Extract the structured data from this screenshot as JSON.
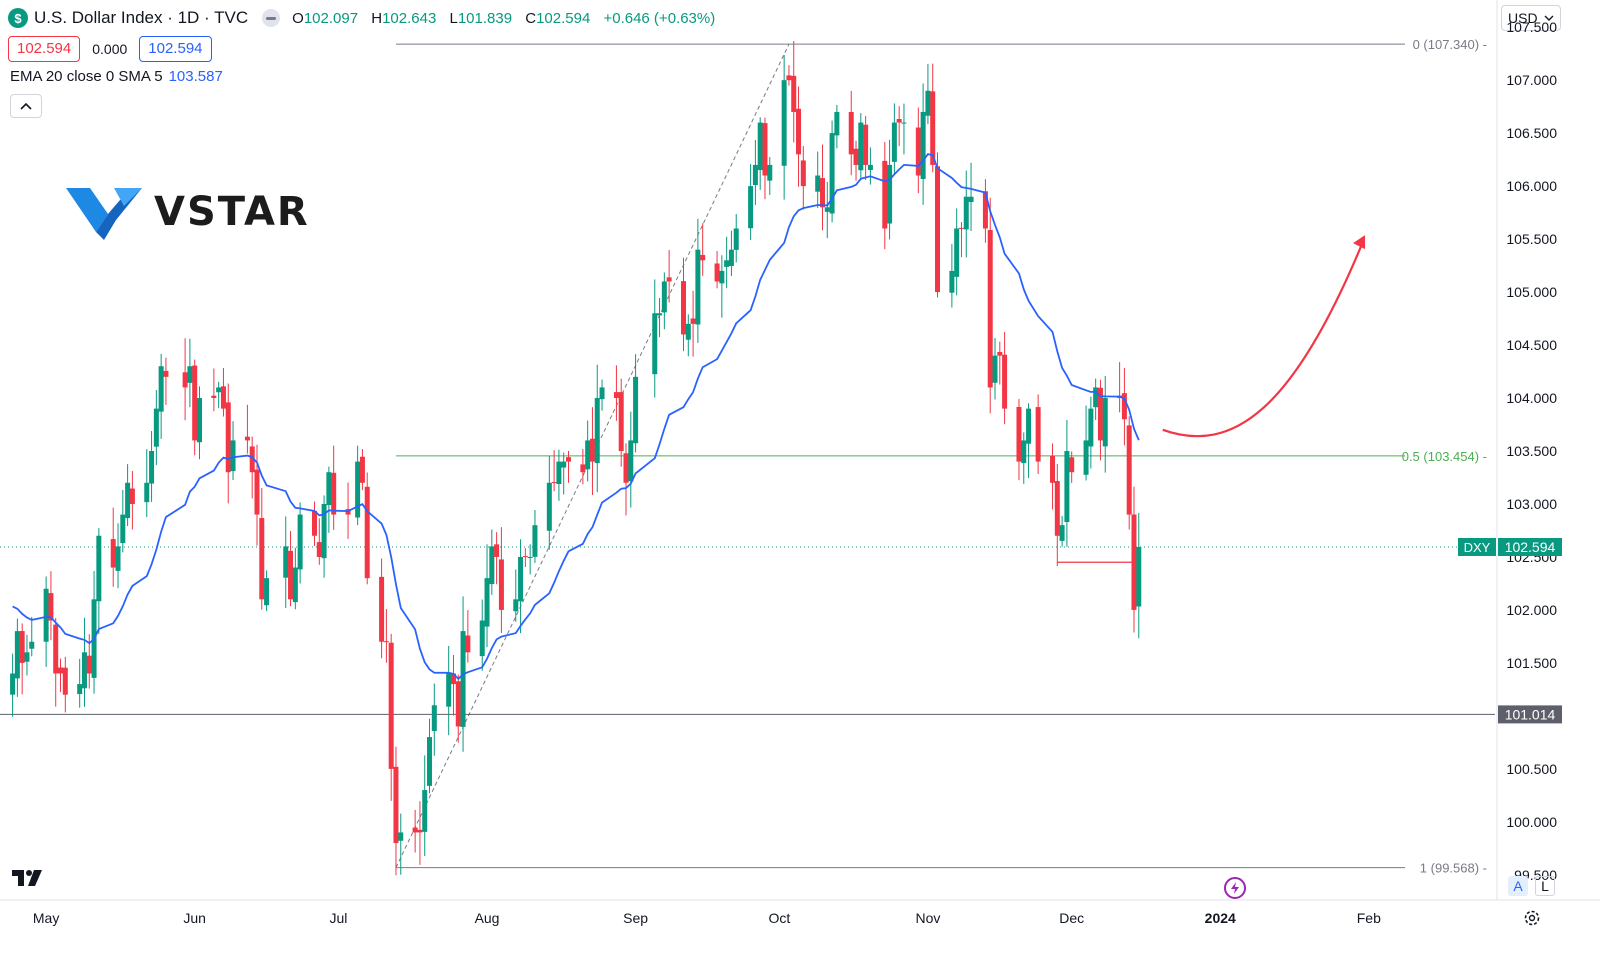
{
  "header": {
    "symbol_icon": "$",
    "title": "U.S. Dollar Index · 1D · TVC",
    "ohlc": {
      "o_label": "O",
      "o": "102.097",
      "h_label": "H",
      "h": "102.643",
      "l_label": "L",
      "l": "101.839",
      "c_label": "C",
      "c": "102.594",
      "change": "+0.646 (+0.63%)"
    },
    "bid": "102.594",
    "spread": "0.000",
    "ask": "102.594",
    "indicator": "EMA 20 close 0 SMA 5",
    "indicator_value": "103.587",
    "collapse_icon": "chevron-up-icon"
  },
  "currency_selector": {
    "value": "USD",
    "icon": "chevron-down-icon"
  },
  "logo": {
    "text": "VSTAR"
  },
  "footer": {
    "auto_label": "A",
    "log_label": "L"
  },
  "colors": {
    "up": "#089981",
    "down": "#f23645",
    "ema": "#2962ff",
    "fib": "#4caf50",
    "arrow": "#f23645"
  },
  "chart_data": {
    "type": "candlestick",
    "symbol": "DXY",
    "timeframe": "1D",
    "ylim": [
      99.3,
      107.7
    ],
    "y_ticks": [
      "107.500",
      "107.000",
      "106.500",
      "106.000",
      "105.500",
      "105.000",
      "104.500",
      "104.000",
      "103.500",
      "103.000",
      "102.500",
      "102.000",
      "101.500",
      "100.500",
      "100.000",
      "99.500"
    ],
    "y_tick_values": [
      107.5,
      107.0,
      106.5,
      106.0,
      105.5,
      105.0,
      104.5,
      104.0,
      103.5,
      103.0,
      102.5,
      102.0,
      101.5,
      100.5,
      100.0,
      99.5
    ],
    "x_labels": [
      "May",
      "Jun",
      "Jul",
      "Aug",
      "Sep",
      "Oct",
      "Nov",
      "Dec",
      "2024",
      "Feb"
    ],
    "x_label_dates": [
      "2023-05-01",
      "2023-06-01",
      "2023-07-01",
      "2023-08-01",
      "2023-09-01",
      "2023-10-01",
      "2023-11-01",
      "2023-12-01",
      "2024-01-01",
      "2024-02-01"
    ],
    "closes": [
      {
        "date": "2023-04-24",
        "close": 101.4
      },
      {
        "date": "2023-04-25",
        "close": 101.8
      },
      {
        "date": "2023-04-26",
        "close": 101.5
      },
      {
        "date": "2023-04-27",
        "close": 101.6
      },
      {
        "date": "2023-04-28",
        "close": 101.7
      },
      {
        "date": "2023-05-01",
        "close": 102.2
      },
      {
        "date": "2023-05-02",
        "close": 101.9
      },
      {
        "date": "2023-05-03",
        "close": 101.4
      },
      {
        "date": "2023-05-04",
        "close": 101.4
      },
      {
        "date": "2023-05-05",
        "close": 101.2
      },
      {
        "date": "2023-05-08",
        "close": 101.3
      },
      {
        "date": "2023-05-09",
        "close": 101.6
      },
      {
        "date": "2023-05-10",
        "close": 101.4
      },
      {
        "date": "2023-05-11",
        "close": 102.1
      },
      {
        "date": "2023-05-12",
        "close": 102.7
      },
      {
        "date": "2023-05-15",
        "close": 102.4
      },
      {
        "date": "2023-05-16",
        "close": 102.6
      },
      {
        "date": "2023-05-17",
        "close": 102.9
      },
      {
        "date": "2023-05-18",
        "close": 103.2
      },
      {
        "date": "2023-05-19",
        "close": 103.0
      },
      {
        "date": "2023-05-22",
        "close": 103.2
      },
      {
        "date": "2023-05-23",
        "close": 103.5
      },
      {
        "date": "2023-05-24",
        "close": 103.9
      },
      {
        "date": "2023-05-25",
        "close": 104.3
      },
      {
        "date": "2023-05-26",
        "close": 104.2
      },
      {
        "date": "2023-05-30",
        "close": 104.1
      },
      {
        "date": "2023-05-31",
        "close": 104.3
      },
      {
        "date": "2023-06-01",
        "close": 103.6
      },
      {
        "date": "2023-06-02",
        "close": 104.0
      },
      {
        "date": "2023-06-05",
        "close": 104.0
      },
      {
        "date": "2023-06-06",
        "close": 104.1
      },
      {
        "date": "2023-06-07",
        "close": 103.9
      },
      {
        "date": "2023-06-08",
        "close": 103.3
      },
      {
        "date": "2023-06-09",
        "close": 103.6
      },
      {
        "date": "2023-06-12",
        "close": 103.6
      },
      {
        "date": "2023-06-13",
        "close": 103.3
      },
      {
        "date": "2023-06-14",
        "close": 102.9
      },
      {
        "date": "2023-06-15",
        "close": 102.1
      },
      {
        "date": "2023-06-16",
        "close": 102.3
      },
      {
        "date": "2023-06-20",
        "close": 102.6
      },
      {
        "date": "2023-06-21",
        "close": 102.1
      },
      {
        "date": "2023-06-22",
        "close": 102.4
      },
      {
        "date": "2023-06-23",
        "close": 102.9
      },
      {
        "date": "2023-06-26",
        "close": 102.7
      },
      {
        "date": "2023-06-27",
        "close": 102.5
      },
      {
        "date": "2023-06-28",
        "close": 103.0
      },
      {
        "date": "2023-06-29",
        "close": 103.3
      },
      {
        "date": "2023-06-30",
        "close": 102.9
      },
      {
        "date": "2023-07-03",
        "close": 102.9
      },
      {
        "date": "2023-07-05",
        "close": 103.4
      },
      {
        "date": "2023-07-06",
        "close": 103.2
      },
      {
        "date": "2023-07-07",
        "close": 102.3
      },
      {
        "date": "2023-07-10",
        "close": 101.7
      },
      {
        "date": "2023-07-11",
        "close": 101.7
      },
      {
        "date": "2023-07-12",
        "close": 100.5
      },
      {
        "date": "2023-07-13",
        "close": 99.8
      },
      {
        "date": "2023-07-14",
        "close": 99.9
      },
      {
        "date": "2023-07-17",
        "close": 99.9
      },
      {
        "date": "2023-07-18",
        "close": 99.9
      },
      {
        "date": "2023-07-19",
        "close": 100.3
      },
      {
        "date": "2023-07-20",
        "close": 100.8
      },
      {
        "date": "2023-07-21",
        "close": 101.1
      },
      {
        "date": "2023-07-24",
        "close": 101.4
      },
      {
        "date": "2023-07-25",
        "close": 101.3
      },
      {
        "date": "2023-07-26",
        "close": 100.9
      },
      {
        "date": "2023-07-27",
        "close": 101.8
      },
      {
        "date": "2023-07-28",
        "close": 101.6
      },
      {
        "date": "2023-07-31",
        "close": 101.9
      },
      {
        "date": "2023-08-01",
        "close": 102.3
      },
      {
        "date": "2023-08-02",
        "close": 102.6
      },
      {
        "date": "2023-08-03",
        "close": 102.5
      },
      {
        "date": "2023-08-04",
        "close": 102.0
      },
      {
        "date": "2023-08-07",
        "close": 102.1
      },
      {
        "date": "2023-08-08",
        "close": 102.5
      },
      {
        "date": "2023-08-09",
        "close": 102.5
      },
      {
        "date": "2023-08-10",
        "close": 102.5
      },
      {
        "date": "2023-08-11",
        "close": 102.8
      },
      {
        "date": "2023-08-14",
        "close": 103.2
      },
      {
        "date": "2023-08-15",
        "close": 103.2
      },
      {
        "date": "2023-08-16",
        "close": 103.4
      },
      {
        "date": "2023-08-17",
        "close": 103.4
      },
      {
        "date": "2023-08-18",
        "close": 103.4
      },
      {
        "date": "2023-08-21",
        "close": 103.3
      },
      {
        "date": "2023-08-22",
        "close": 103.6
      },
      {
        "date": "2023-08-23",
        "close": 103.4
      },
      {
        "date": "2023-08-24",
        "close": 104.0
      },
      {
        "date": "2023-08-25",
        "close": 104.1
      },
      {
        "date": "2023-08-28",
        "close": 104.0
      },
      {
        "date": "2023-08-29",
        "close": 103.5
      },
      {
        "date": "2023-08-30",
        "close": 103.2
      },
      {
        "date": "2023-08-31",
        "close": 103.6
      },
      {
        "date": "2023-09-01",
        "close": 104.2
      },
      {
        "date": "2023-09-05",
        "close": 104.8
      },
      {
        "date": "2023-09-06",
        "close": 104.8
      },
      {
        "date": "2023-09-07",
        "close": 105.1
      },
      {
        "date": "2023-09-08",
        "close": 105.1
      },
      {
        "date": "2023-09-11",
        "close": 104.6
      },
      {
        "date": "2023-09-12",
        "close": 104.7
      },
      {
        "date": "2023-09-13",
        "close": 104.7
      },
      {
        "date": "2023-09-14",
        "close": 105.4
      },
      {
        "date": "2023-09-15",
        "close": 105.3
      },
      {
        "date": "2023-09-18",
        "close": 105.1
      },
      {
        "date": "2023-09-19",
        "close": 105.2
      },
      {
        "date": "2023-09-20",
        "close": 105.3
      },
      {
        "date": "2023-09-21",
        "close": 105.4
      },
      {
        "date": "2023-09-22",
        "close": 105.6
      },
      {
        "date": "2023-09-25",
        "close": 106.0
      },
      {
        "date": "2023-09-26",
        "close": 106.2
      },
      {
        "date": "2023-09-27",
        "close": 106.6
      },
      {
        "date": "2023-09-28",
        "close": 106.1
      },
      {
        "date": "2023-09-29",
        "close": 106.2
      },
      {
        "date": "2023-10-02",
        "close": 107.0
      },
      {
        "date": "2023-10-03",
        "close": 107.0
      },
      {
        "date": "2023-10-04",
        "close": 106.7
      },
      {
        "date": "2023-10-05",
        "close": 106.3
      },
      {
        "date": "2023-10-06",
        "close": 106.0
      },
      {
        "date": "2023-10-09",
        "close": 106.1
      },
      {
        "date": "2023-10-10",
        "close": 105.8
      },
      {
        "date": "2023-10-11",
        "close": 105.8
      },
      {
        "date": "2023-10-12",
        "close": 106.5
      },
      {
        "date": "2023-10-13",
        "close": 106.7
      },
      {
        "date": "2023-10-16",
        "close": 106.3
      },
      {
        "date": "2023-10-17",
        "close": 106.2
      },
      {
        "date": "2023-10-18",
        "close": 106.6
      },
      {
        "date": "2023-10-19",
        "close": 106.2
      },
      {
        "date": "2023-10-20",
        "close": 106.2
      },
      {
        "date": "2023-10-23",
        "close": 105.6
      },
      {
        "date": "2023-10-24",
        "close": 106.2
      },
      {
        "date": "2023-10-25",
        "close": 106.6
      },
      {
        "date": "2023-10-26",
        "close": 106.6
      },
      {
        "date": "2023-10-27",
        "close": 106.6
      },
      {
        "date": "2023-10-30",
        "close": 106.1
      },
      {
        "date": "2023-10-31",
        "close": 106.7
      },
      {
        "date": "2023-11-01",
        "close": 106.9
      },
      {
        "date": "2023-11-02",
        "close": 106.2
      },
      {
        "date": "2023-11-03",
        "close": 105.0
      },
      {
        "date": "2023-11-06",
        "close": 105.2
      },
      {
        "date": "2023-11-07",
        "close": 105.6
      },
      {
        "date": "2023-11-08",
        "close": 105.6
      },
      {
        "date": "2023-11-09",
        "close": 105.9
      },
      {
        "date": "2023-11-10",
        "close": 105.9
      },
      {
        "date": "2023-11-13",
        "close": 105.6
      },
      {
        "date": "2023-11-14",
        "close": 104.1
      },
      {
        "date": "2023-11-15",
        "close": 104.4
      },
      {
        "date": "2023-11-16",
        "close": 104.4
      },
      {
        "date": "2023-11-17",
        "close": 103.9
      },
      {
        "date": "2023-11-20",
        "close": 103.4
      },
      {
        "date": "2023-11-21",
        "close": 103.6
      },
      {
        "date": "2023-11-22",
        "close": 103.9
      },
      {
        "date": "2023-11-24",
        "close": 103.4
      },
      {
        "date": "2023-11-27",
        "close": 103.2
      },
      {
        "date": "2023-11-28",
        "close": 102.7
      },
      {
        "date": "2023-11-29",
        "close": 102.8
      },
      {
        "date": "2023-11-30",
        "close": 103.5
      },
      {
        "date": "2023-12-01",
        "close": 103.3
      },
      {
        "date": "2023-12-04",
        "close": 103.6
      },
      {
        "date": "2023-12-05",
        "close": 103.9
      },
      {
        "date": "2023-12-06",
        "close": 104.1
      },
      {
        "date": "2023-12-07",
        "close": 103.6
      },
      {
        "date": "2023-12-08",
        "close": 104.0
      },
      {
        "date": "2023-12-11",
        "close": 104.0
      },
      {
        "date": "2023-12-12",
        "close": 103.8
      },
      {
        "date": "2023-12-13",
        "close": 102.9
      },
      {
        "date": "2023-12-14",
        "close": 102.0
      },
      {
        "date": "2023-12-15",
        "close": 102.594
      }
    ],
    "fib_levels": [
      {
        "label": "0 (107.340)",
        "value": 107.34,
        "color": "#787b86"
      },
      {
        "label": "0.5 (103.454)",
        "value": 103.454,
        "color": "#4caf50"
      },
      {
        "label": "1 (99.568)",
        "value": 99.568,
        "color": "#787b86"
      }
    ],
    "fib_trendline": {
      "from": {
        "date": "2023-07-13",
        "value": 99.568
      },
      "to": {
        "date": "2023-10-03",
        "value": 107.34
      }
    },
    "horizontal_line": {
      "value": 101.014,
      "label": "101.014"
    },
    "support_segment": {
      "from_date": "2023-11-28",
      "to_date": "2023-12-14",
      "value": 102.45
    },
    "current_price": {
      "symbol": "DXY",
      "value": 102.594,
      "label": "102.594"
    },
    "projection_arrow": {
      "description": "red curved arrow projecting upward",
      "from": {
        "date": "2023-12-20",
        "value": 103.7
      },
      "to": {
        "date": "2024-01-31",
        "value": 105.5
      }
    }
  }
}
